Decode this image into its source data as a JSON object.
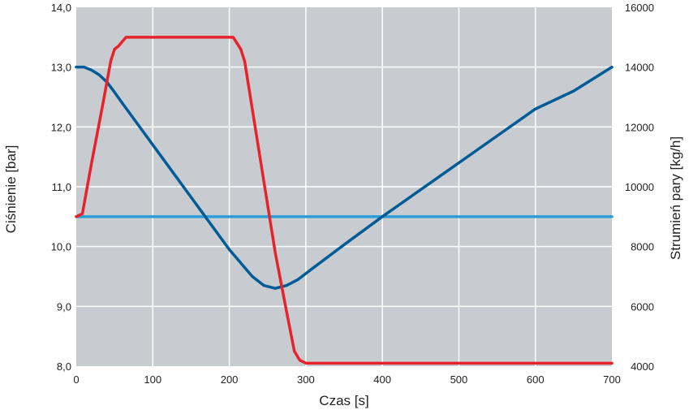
{
  "chart_data": {
    "type": "line",
    "title": "",
    "xlabel": "Czas [s]",
    "ylabel_left": "Ciśnienie [bar]",
    "ylabel_right": "Strumień pary [kg/h]",
    "xlim": [
      0,
      700
    ],
    "ylim_left": [
      8.0,
      14.0
    ],
    "ylim_right": [
      4000,
      16000
    ],
    "grid": true,
    "x_ticks": [
      "0",
      "100",
      "200",
      "300",
      "400",
      "500",
      "600",
      "700"
    ],
    "x_tick_values": [
      0,
      100,
      200,
      300,
      400,
      500,
      600,
      700
    ],
    "y_left_ticks": [
      "8,0",
      "9,0",
      "10,0",
      "11,0",
      "12,0",
      "13,0",
      "14,0"
    ],
    "y_left_tick_values": [
      8,
      9,
      10,
      11,
      12,
      13,
      14
    ],
    "y_right_ticks": [
      "4000",
      "6000",
      "8000",
      "10000",
      "12000",
      "14000",
      "16000"
    ],
    "y_right_tick_values": [
      4000,
      6000,
      8000,
      10000,
      12000,
      14000,
      16000
    ],
    "colors": {
      "plot_background": "#c8ccd1",
      "grid": "#ffffff",
      "pressure": "#005b96",
      "steam_flow": "#e8222a",
      "reference": "#2d9cd6"
    },
    "series": [
      {
        "key": "pressure",
        "axis": "left",
        "x": [
          0,
          10,
          20,
          30,
          40,
          50,
          60,
          80,
          100,
          120,
          140,
          160,
          180,
          200,
          210,
          220,
          230,
          245,
          260,
          275,
          290,
          300,
          350,
          400,
          450,
          500,
          550,
          600,
          650,
          700
        ],
        "y": [
          13.0,
          13.0,
          12.95,
          12.87,
          12.75,
          12.58,
          12.4,
          12.05,
          11.7,
          11.35,
          11.0,
          10.65,
          10.3,
          9.95,
          9.8,
          9.65,
          9.5,
          9.35,
          9.3,
          9.35,
          9.45,
          9.55,
          10.03,
          10.5,
          10.95,
          11.4,
          11.85,
          12.3,
          12.6,
          13.0
        ]
      },
      {
        "key": "steam_flow",
        "axis": "right",
        "x": [
          0,
          8,
          20,
          35,
          45,
          50,
          55,
          65,
          100,
          150,
          205,
          215,
          220,
          230,
          245,
          260,
          275,
          285,
          292,
          300,
          400,
          500,
          600,
          700
        ],
        "y": [
          9000,
          9100,
          10800,
          12800,
          14200,
          14600,
          14700,
          15000,
          15000,
          15000,
          15000,
          14600,
          14200,
          12600,
          10200,
          7800,
          5800,
          4500,
          4200,
          4100,
          4100,
          4100,
          4100,
          4100
        ]
      },
      {
        "key": "reference",
        "axis": "right",
        "x": [
          0,
          700
        ],
        "y": [
          9000,
          9000
        ]
      }
    ]
  }
}
